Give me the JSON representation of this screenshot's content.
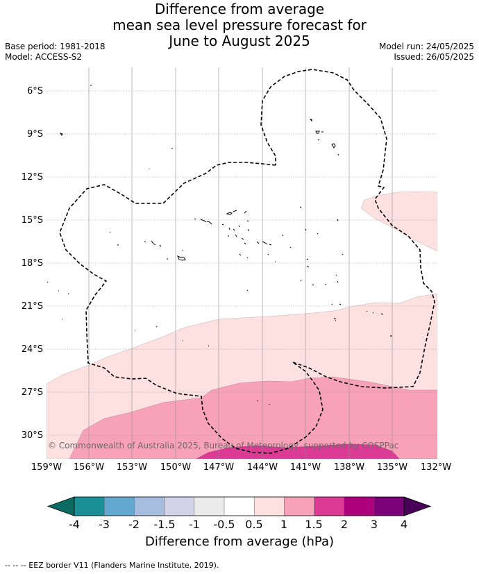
{
  "title": {
    "line1": "Difference from average",
    "line2": "mean sea level pressure forecast for",
    "line3": "June to August 2025"
  },
  "meta": {
    "base_period": "Base period: 1981-2018",
    "model": "Model: ACCESS-S2",
    "model_run": "Model run: 24/05/2025",
    "issued": "Issued: 26/05/2025"
  },
  "copyright": "© Commonwealth of Australia 2025, Bureau of Meteorology, supported by COSPPac",
  "lat_labels": [
    "6°S",
    "9°S",
    "12°S",
    "15°S",
    "18°S",
    "21°S",
    "24°S",
    "27°S",
    "30°S"
  ],
  "lon_labels": [
    "159°W",
    "156°W",
    "153°W",
    "150°W",
    "147°W",
    "144°W",
    "141°W",
    "138°W",
    "135°W",
    "132°W"
  ],
  "colorbar": {
    "ticks": [
      "-4",
      "-3",
      "-2",
      "-1.5",
      "-1",
      "-0.5",
      "0.5",
      "1",
      "1.5",
      "2",
      "3",
      "4"
    ],
    "title": "Difference from average (hPa)",
    "colors": [
      "#1a8f96",
      "#63a8d0",
      "#a6bde0",
      "#d2d3e9",
      "#ebebeb",
      "#ffffff",
      "#fde0e0",
      "#f8a2b9",
      "#db3b94",
      "#ad017e",
      "#7a0178"
    ],
    "under_color": "#0b6b64",
    "over_color": "#4a0058"
  },
  "footnote": "--  --  -- EEZ border V11 (Flanders Marine Institute, 2019)."
}
